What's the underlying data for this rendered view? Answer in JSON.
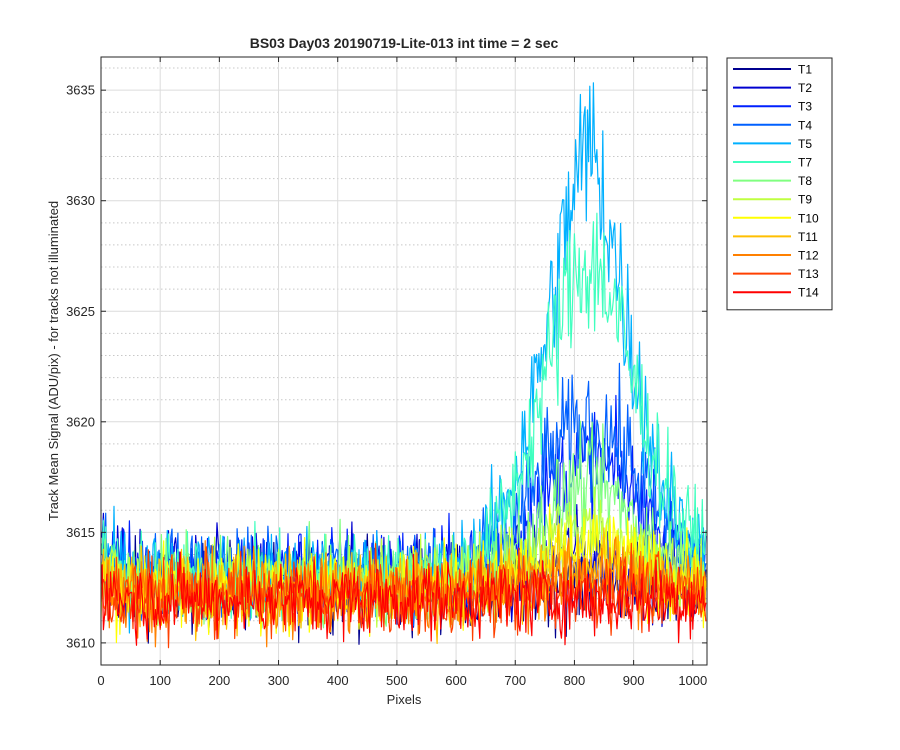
{
  "chart_data": {
    "type": "line",
    "title": "BS03 Day03 20190719-Lite-013 int time = 2 sec",
    "xlabel": "Pixels",
    "ylabel": "Track Mean Signal (ADU/pix) - for tracks not illuminated",
    "xlim": [
      0,
      1024
    ],
    "ylim": [
      3609,
      3636.5
    ],
    "xticks": [
      0,
      100,
      200,
      300,
      400,
      500,
      600,
      700,
      800,
      900,
      1000
    ],
    "yticks": [
      3610,
      3615,
      3620,
      3625,
      3630,
      3635
    ],
    "grid": true,
    "minor_grid": true,
    "legend_position": "outside-top-right",
    "x": [
      0,
      25,
      50,
      75,
      100,
      125,
      150,
      175,
      200,
      225,
      250,
      275,
      300,
      325,
      350,
      375,
      400,
      425,
      450,
      475,
      500,
      525,
      550,
      575,
      600,
      625,
      650,
      675,
      700,
      725,
      750,
      775,
      800,
      825,
      850,
      875,
      900,
      925,
      950,
      975,
      1000,
      1023
    ],
    "series": [
      {
        "name": "T1",
        "color": "#00008f",
        "values": [
          3613.5,
          3612.8,
          3612.6,
          3612.6,
          3612.5,
          3612.5,
          3612.5,
          3612.5,
          3612.5,
          3612.5,
          3612.5,
          3612.5,
          3612.5,
          3612.5,
          3612.5,
          3612.5,
          3612.5,
          3612.5,
          3612.5,
          3612.5,
          3612.5,
          3612.5,
          3612.5,
          3612.5,
          3612.5,
          3612.5,
          3612.5,
          3612.5,
          3612.6,
          3612.6,
          3612.7,
          3612.7,
          3612.7,
          3612.8,
          3612.7,
          3612.7,
          3612.6,
          3612.6,
          3612.5,
          3612.5,
          3612.5,
          3612.5
        ]
      },
      {
        "name": "T2",
        "color": "#0000d0",
        "values": [
          3614.0,
          3613.2,
          3613.0,
          3613.0,
          3613.0,
          3613.0,
          3613.0,
          3613.0,
          3613.0,
          3613.0,
          3613.0,
          3613.0,
          3613.0,
          3613.0,
          3613.0,
          3613.0,
          3613.0,
          3613.0,
          3613.0,
          3613.0,
          3613.0,
          3613.0,
          3613.0,
          3613.0,
          3613.0,
          3613.0,
          3613.0,
          3613.1,
          3613.3,
          3613.4,
          3613.6,
          3613.8,
          3614.0,
          3614.0,
          3613.9,
          3613.7,
          3613.5,
          3613.3,
          3613.2,
          3613.1,
          3613.0,
          3613.0
        ]
      },
      {
        "name": "T3",
        "color": "#0020ff",
        "values": [
          3614.2,
          3613.5,
          3613.3,
          3613.3,
          3613.3,
          3613.3,
          3613.3,
          3613.3,
          3613.3,
          3613.3,
          3613.3,
          3613.3,
          3613.3,
          3613.3,
          3613.3,
          3613.3,
          3613.3,
          3613.3,
          3613.3,
          3613.3,
          3613.3,
          3613.3,
          3613.3,
          3613.3,
          3613.3,
          3613.4,
          3613.6,
          3614.0,
          3614.7,
          3615.6,
          3616.6,
          3617.5,
          3618.0,
          3618.2,
          3618.0,
          3617.5,
          3616.6,
          3615.7,
          3614.8,
          3614.1,
          3613.7,
          3613.5
        ]
      },
      {
        "name": "T4",
        "color": "#0060ff",
        "values": [
          3614.0,
          3613.4,
          3613.2,
          3613.2,
          3613.2,
          3613.2,
          3613.2,
          3613.2,
          3613.2,
          3613.2,
          3613.2,
          3613.2,
          3613.2,
          3613.2,
          3613.2,
          3613.2,
          3613.2,
          3613.2,
          3613.2,
          3613.2,
          3613.2,
          3613.2,
          3613.2,
          3613.2,
          3613.2,
          3613.4,
          3613.7,
          3614.3,
          3615.3,
          3616.6,
          3618.0,
          3619.0,
          3619.6,
          3619.8,
          3619.6,
          3619.0,
          3618.0,
          3616.8,
          3615.6,
          3614.6,
          3613.9,
          3613.6
        ]
      },
      {
        "name": "T5",
        "color": "#00b0ff",
        "values": [
          3614.0,
          3613.3,
          3613.1,
          3613.1,
          3613.1,
          3613.1,
          3613.1,
          3613.1,
          3613.1,
          3613.1,
          3613.1,
          3613.1,
          3613.1,
          3613.1,
          3613.1,
          3613.1,
          3613.1,
          3613.1,
          3613.1,
          3613.1,
          3613.1,
          3613.1,
          3613.1,
          3613.2,
          3613.4,
          3613.8,
          3614.6,
          3615.9,
          3617.8,
          3620.4,
          3623.6,
          3627.3,
          3630.6,
          3632.6,
          3630.3,
          3626.6,
          3622.8,
          3619.6,
          3617.2,
          3615.6,
          3614.6,
          3614.2
        ]
      },
      {
        "name": "T7",
        "color": "#40ffbf",
        "values": [
          3613.8,
          3613.1,
          3612.9,
          3612.9,
          3612.9,
          3612.9,
          3612.9,
          3612.9,
          3612.9,
          3612.9,
          3612.9,
          3612.9,
          3612.9,
          3612.9,
          3612.9,
          3612.9,
          3612.9,
          3612.9,
          3612.9,
          3612.9,
          3612.9,
          3612.9,
          3612.9,
          3613.0,
          3613.2,
          3613.6,
          3614.3,
          3615.4,
          3617.0,
          3619.2,
          3621.8,
          3624.5,
          3626.6,
          3627.3,
          3626.4,
          3624.4,
          3621.8,
          3619.3,
          3617.3,
          3615.8,
          3614.8,
          3614.3
        ]
      },
      {
        "name": "T8",
        "color": "#80ff80",
        "values": [
          3613.4,
          3612.9,
          3612.8,
          3612.8,
          3612.8,
          3612.8,
          3612.8,
          3612.8,
          3612.8,
          3612.8,
          3612.8,
          3612.8,
          3612.8,
          3612.8,
          3612.8,
          3612.8,
          3612.8,
          3612.8,
          3612.8,
          3612.8,
          3612.8,
          3612.8,
          3612.8,
          3612.8,
          3612.9,
          3613.0,
          3613.2,
          3613.6,
          3614.1,
          3614.8,
          3615.6,
          3616.4,
          3616.9,
          3617.1,
          3616.9,
          3616.3,
          3615.6,
          3614.8,
          3614.1,
          3613.6,
          3613.3,
          3613.1
        ]
      },
      {
        "name": "T9",
        "color": "#bfff40",
        "values": [
          3613.2,
          3612.7,
          3612.6,
          3612.6,
          3612.6,
          3612.6,
          3612.6,
          3612.6,
          3612.6,
          3612.6,
          3612.6,
          3612.6,
          3612.6,
          3612.6,
          3612.6,
          3612.6,
          3612.6,
          3612.6,
          3612.6,
          3612.6,
          3612.6,
          3612.6,
          3612.6,
          3612.6,
          3612.7,
          3612.8,
          3612.9,
          3613.2,
          3613.5,
          3613.9,
          3614.4,
          3614.8,
          3615.2,
          3615.3,
          3615.2,
          3614.8,
          3614.3,
          3613.9,
          3613.5,
          3613.2,
          3613.0,
          3612.9
        ]
      },
      {
        "name": "T10",
        "color": "#ffff00",
        "values": [
          3613.0,
          3612.6,
          3612.5,
          3612.5,
          3612.5,
          3612.5,
          3612.5,
          3612.5,
          3612.5,
          3612.5,
          3612.5,
          3612.5,
          3612.5,
          3612.5,
          3612.5,
          3612.5,
          3612.5,
          3612.5,
          3612.5,
          3612.5,
          3612.5,
          3612.5,
          3612.5,
          3612.5,
          3612.6,
          3612.6,
          3612.7,
          3612.9,
          3613.1,
          3613.3,
          3613.6,
          3613.9,
          3614.1,
          3614.2,
          3614.1,
          3613.9,
          3613.6,
          3613.3,
          3613.1,
          3612.9,
          3612.8,
          3612.7
        ]
      },
      {
        "name": "T11",
        "color": "#ffbf00",
        "values": [
          3612.8,
          3612.4,
          3612.3,
          3612.3,
          3612.3,
          3612.3,
          3612.3,
          3612.3,
          3612.3,
          3612.3,
          3612.3,
          3612.3,
          3612.3,
          3612.3,
          3612.3,
          3612.3,
          3612.3,
          3612.3,
          3612.3,
          3612.3,
          3612.3,
          3612.3,
          3612.3,
          3612.3,
          3612.3,
          3612.4,
          3612.5,
          3612.6,
          3612.8,
          3612.9,
          3613.1,
          3613.3,
          3613.4,
          3613.5,
          3613.4,
          3613.3,
          3613.1,
          3612.9,
          3612.8,
          3612.6,
          3612.5,
          3612.5
        ]
      },
      {
        "name": "T12",
        "color": "#ff8000",
        "values": [
          3612.7,
          3612.3,
          3612.2,
          3612.2,
          3612.2,
          3612.2,
          3612.2,
          3612.2,
          3612.2,
          3612.2,
          3612.2,
          3612.2,
          3612.2,
          3612.2,
          3612.2,
          3612.2,
          3612.2,
          3612.2,
          3612.2,
          3612.2,
          3612.2,
          3612.2,
          3612.2,
          3612.2,
          3612.2,
          3612.3,
          3612.3,
          3612.4,
          3612.5,
          3612.6,
          3612.7,
          3612.8,
          3612.9,
          3612.9,
          3612.9,
          3612.8,
          3612.7,
          3612.6,
          3612.5,
          3612.4,
          3612.3,
          3612.3
        ]
      },
      {
        "name": "T13",
        "color": "#ff4000",
        "values": [
          3612.6,
          3612.2,
          3612.1,
          3612.1,
          3612.1,
          3612.1,
          3612.1,
          3612.1,
          3612.1,
          3612.1,
          3612.1,
          3612.1,
          3612.1,
          3612.1,
          3612.1,
          3612.1,
          3612.1,
          3612.1,
          3612.1,
          3612.1,
          3612.1,
          3612.1,
          3612.1,
          3612.1,
          3612.1,
          3612.1,
          3612.2,
          3612.2,
          3612.3,
          3612.3,
          3612.4,
          3612.4,
          3612.5,
          3612.5,
          3612.5,
          3612.4,
          3612.4,
          3612.3,
          3612.3,
          3612.2,
          3612.2,
          3612.2
        ]
      },
      {
        "name": "T14",
        "color": "#ff0000",
        "values": [
          3612.5,
          3612.1,
          3612.0,
          3612.0,
          3612.0,
          3612.0,
          3612.0,
          3612.0,
          3612.0,
          3612.0,
          3612.0,
          3612.0,
          3612.0,
          3612.0,
          3612.0,
          3612.0,
          3612.0,
          3612.0,
          3612.0,
          3612.0,
          3612.0,
          3612.0,
          3612.0,
          3612.0,
          3612.0,
          3612.0,
          3612.0,
          3612.0,
          3612.0,
          3612.0,
          3612.0,
          3612.0,
          3612.0,
          3612.0,
          3612.0,
          3612.0,
          3612.0,
          3612.0,
          3612.0,
          3612.0,
          3612.0,
          3612.0
        ]
      }
    ]
  }
}
